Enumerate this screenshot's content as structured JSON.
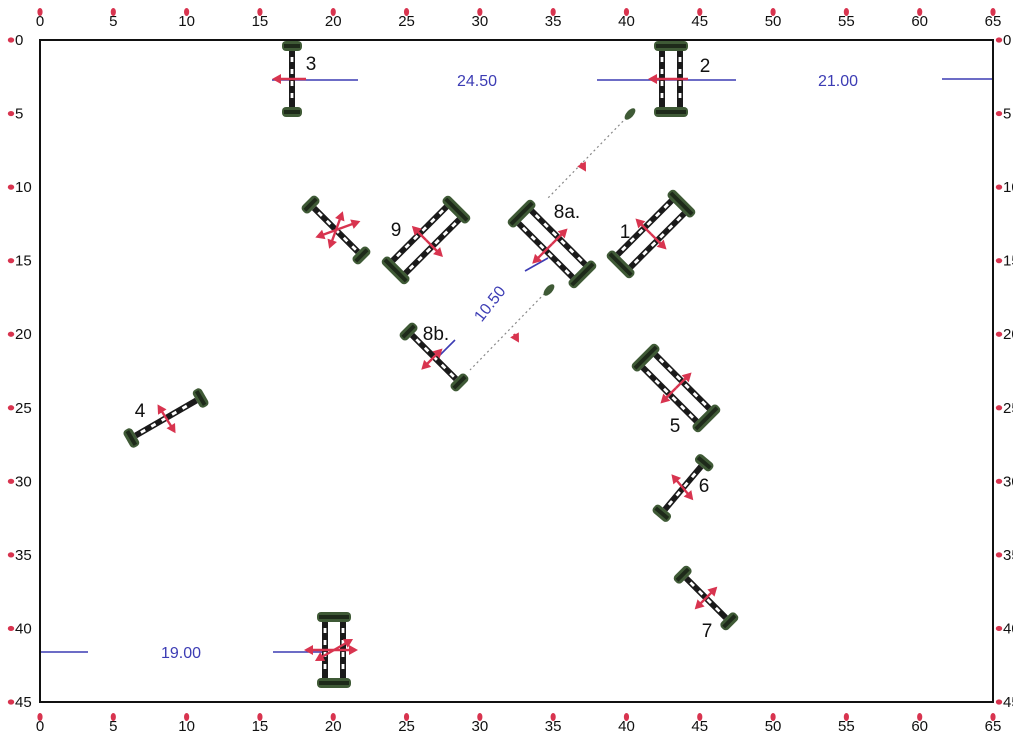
{
  "grid": {
    "x_ticks": [
      0,
      5,
      10,
      15,
      20,
      25,
      30,
      35,
      40,
      45,
      50,
      55,
      60,
      65
    ],
    "y_ticks": [
      0,
      5,
      10,
      15,
      20,
      25,
      30,
      35,
      40,
      45
    ],
    "x_range": [
      0,
      65
    ],
    "y_range": [
      0,
      45
    ]
  },
  "colors": {
    "frame": "#111111",
    "tick_marker": "#d8344f",
    "arrow": "#d8344f",
    "distance": "#3c3cb4",
    "pole": "#1a1a1a",
    "foliage": "#3f5a36"
  },
  "obstacles": [
    {
      "number": "1",
      "kind": "oxer"
    },
    {
      "number": "2",
      "kind": "oxer"
    },
    {
      "number": "3",
      "kind": "vertical"
    },
    {
      "number": "4",
      "kind": "vertical"
    },
    {
      "number": "5",
      "kind": "oxer"
    },
    {
      "number": "6",
      "kind": "vertical"
    },
    {
      "number": "7",
      "kind": "vertical"
    },
    {
      "number": "8a.",
      "kind": "oxer"
    },
    {
      "number": "8b.",
      "kind": "vertical"
    },
    {
      "number": "9",
      "kind": "oxer"
    },
    {
      "number": "",
      "kind": "vertical"
    },
    {
      "number": "",
      "kind": "oxer"
    }
  ],
  "distances": [
    {
      "label": "24.50"
    },
    {
      "label": "21.00"
    },
    {
      "label": "19.00"
    },
    {
      "label": "10.50"
    }
  ]
}
